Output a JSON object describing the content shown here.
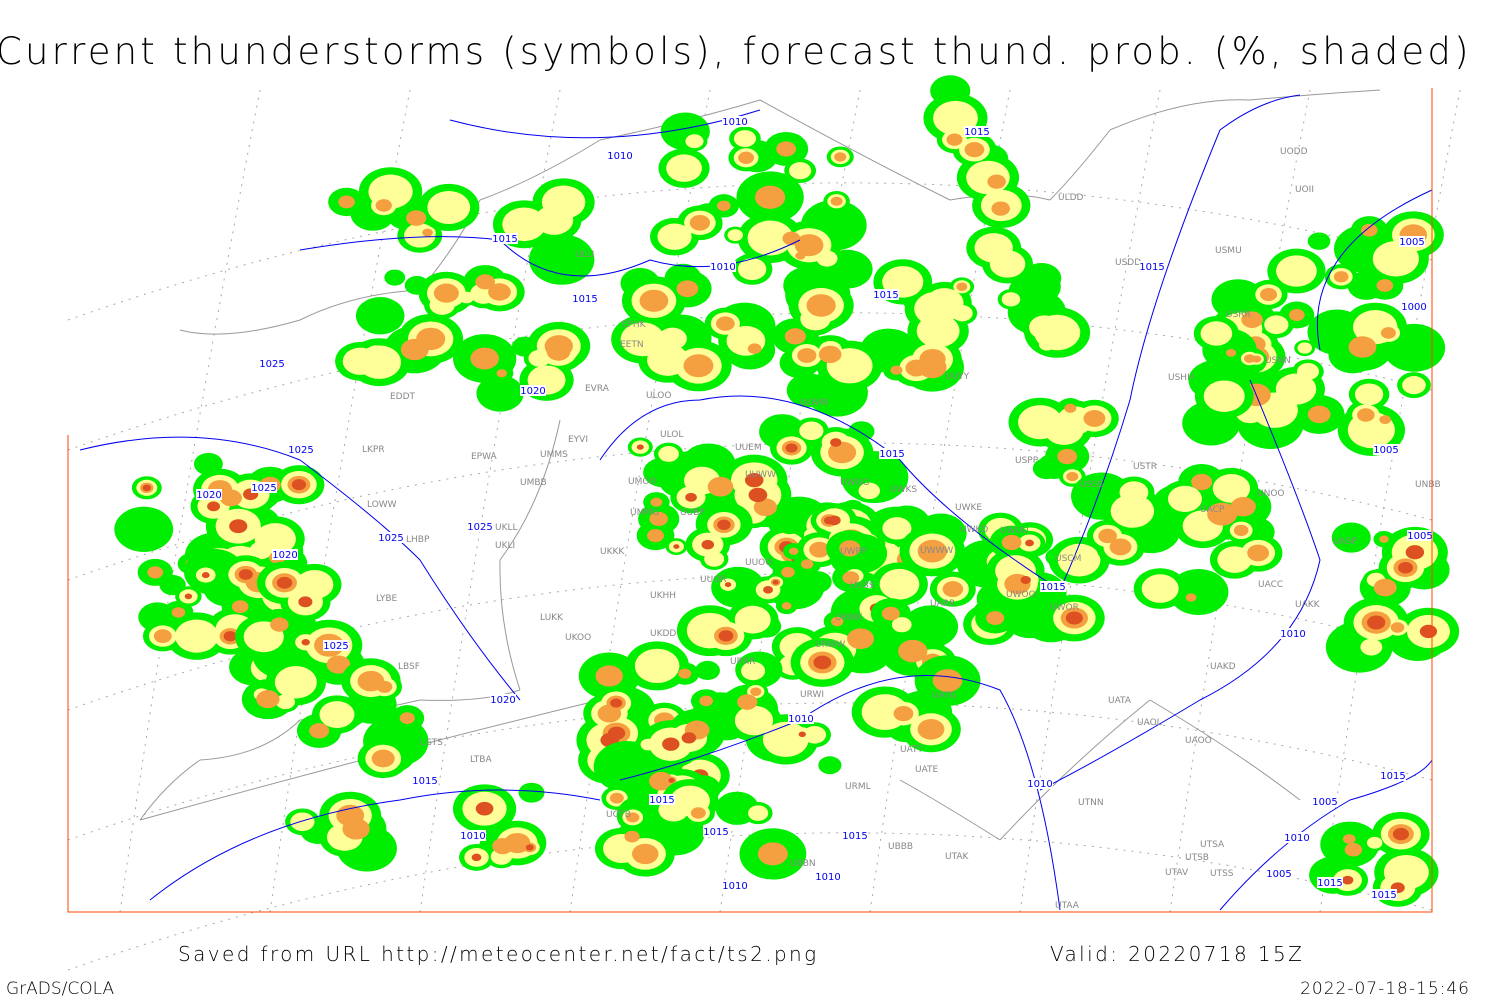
{
  "title": "Current thunderstorms (symbols), forecast thund. prob. (%, shaded)",
  "footer": {
    "saved": "Saved from URL http://meteocenter.net/fact/ts2.png",
    "valid": "Valid: 20220718 15Z",
    "software": "GrADS/COLA",
    "timestamp": "2022-07-18-15:46"
  },
  "colors": {
    "prob_low": "#00ee00",
    "prob_mid": "#ffff99",
    "prob_high": "#f5a040",
    "prob_max": "#dd5022",
    "isobar": "#0000ee",
    "coastline": "#999999",
    "frame": "#ff4400"
  },
  "isobar_labels": [
    "1010",
    "1010",
    "1015",
    "1015",
    "1010",
    "1015",
    "1015",
    "1015",
    "1005",
    "1000",
    "1025",
    "1020",
    "1025",
    "1015",
    "1020",
    "1025",
    "1025",
    "1025",
    "1020",
    "1015",
    "1025",
    "1010",
    "1005",
    "1005",
    "1020",
    "1010",
    "1015",
    "1015",
    "1010",
    "1015",
    "1010",
    "1015",
    "1010",
    "1015",
    "1005",
    "1010",
    "1010",
    "1005",
    "1015",
    "1015"
  ],
  "stations": [
    "EDDT",
    "LKPR",
    "EPWA",
    "UMMS",
    "UMBB",
    "LOWW",
    "LHBP",
    "UKLL",
    "UKLI",
    "LYBE",
    "LUKK",
    "LBSF",
    "UKOO",
    "LGTS",
    "LTBA",
    "EFHK",
    "EETN",
    "EVRA",
    "EYVI",
    "ULOO",
    "ULOL",
    "UUEM",
    "UMOO",
    "UMMG",
    "UUBP",
    "UUWW",
    "UWGG",
    "UWKS",
    "UWKE",
    "UWKD",
    "UWUU",
    "USCM",
    "UWPP",
    "UWWW",
    "UUOO",
    "UUOR",
    "UKHH",
    "UKKK",
    "UKDD",
    "UUSS",
    "URWK",
    "URRR",
    "URWW",
    "URWI",
    "URML",
    "UATG",
    "UATA",
    "UAOL",
    "UAOO",
    "UATE",
    "UATT",
    "UTAK",
    "UBBB",
    "UBBN",
    "UGTB",
    "ULDD",
    "USDD",
    "USMU",
    "USRR",
    "USNN",
    "USHH",
    "UUYY",
    "ULWW",
    "USPP",
    "USTR",
    "USSS",
    "UACP",
    "UNOO",
    "UNBB",
    "UASP",
    "UACC",
    "UAKK",
    "UAKD",
    "UTNN",
    "UTSA",
    "UTSB",
    "UTAV",
    "UTSS",
    "UTAA",
    "UODD",
    "UOII",
    "UWOO",
    "UWOR",
    "UARR",
    "ULLI"
  ]
}
